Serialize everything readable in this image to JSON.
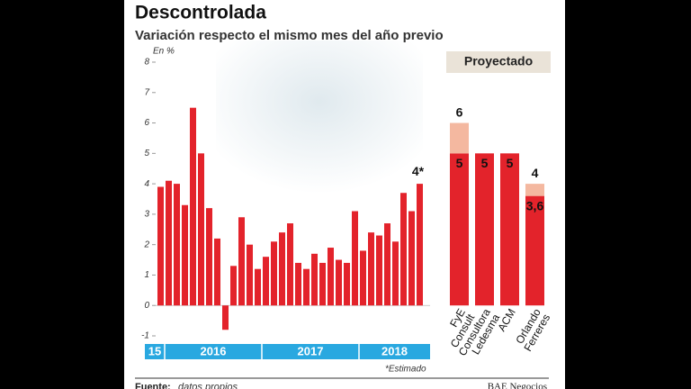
{
  "chart_data": {
    "type": "bar",
    "title": "Descontrolada",
    "subtitle": "Variación respecto el mismo mes del año previo",
    "y_unit_label": "En %",
    "ylim": [
      -1,
      8
    ],
    "yticks": [
      -1,
      0,
      1,
      2,
      3,
      4,
      5,
      6,
      7,
      8
    ],
    "grid": false,
    "color": "#e3232b",
    "values": [
      3.9,
      4.1,
      4.0,
      3.3,
      6.5,
      5.0,
      3.2,
      2.2,
      -0.8,
      1.3,
      2.9,
      2.0,
      1.2,
      1.6,
      2.1,
      2.4,
      2.7,
      1.4,
      1.2,
      1.7,
      1.4,
      1.9,
      1.5,
      1.4,
      3.1,
      1.8,
      2.4,
      2.3,
      2.7,
      2.1,
      3.7,
      3.1,
      4.0
    ],
    "last_label": "4*",
    "years": [
      "15",
      "2016",
      "2017",
      "2018"
    ],
    "year_color": "#29a8e0",
    "projection_title": "Proyectado",
    "projections": {
      "names": [
        [
          "FyE",
          "Consult"
        ],
        [
          "Consultora",
          "Ledesma"
        ],
        [
          "ACM"
        ],
        [
          "Orlando",
          "Ferreres"
        ]
      ],
      "low": [
        5,
        5,
        5,
        3.6
      ],
      "low_labels": [
        "5",
        "5",
        "5",
        "3,6"
      ],
      "high": [
        6,
        null,
        null,
        4
      ],
      "high_color": "#f4b8a0"
    },
    "note": "*Estimado",
    "source_label": "Fuente:",
    "source": "datos propios",
    "brand": "BAE Negocios"
  }
}
